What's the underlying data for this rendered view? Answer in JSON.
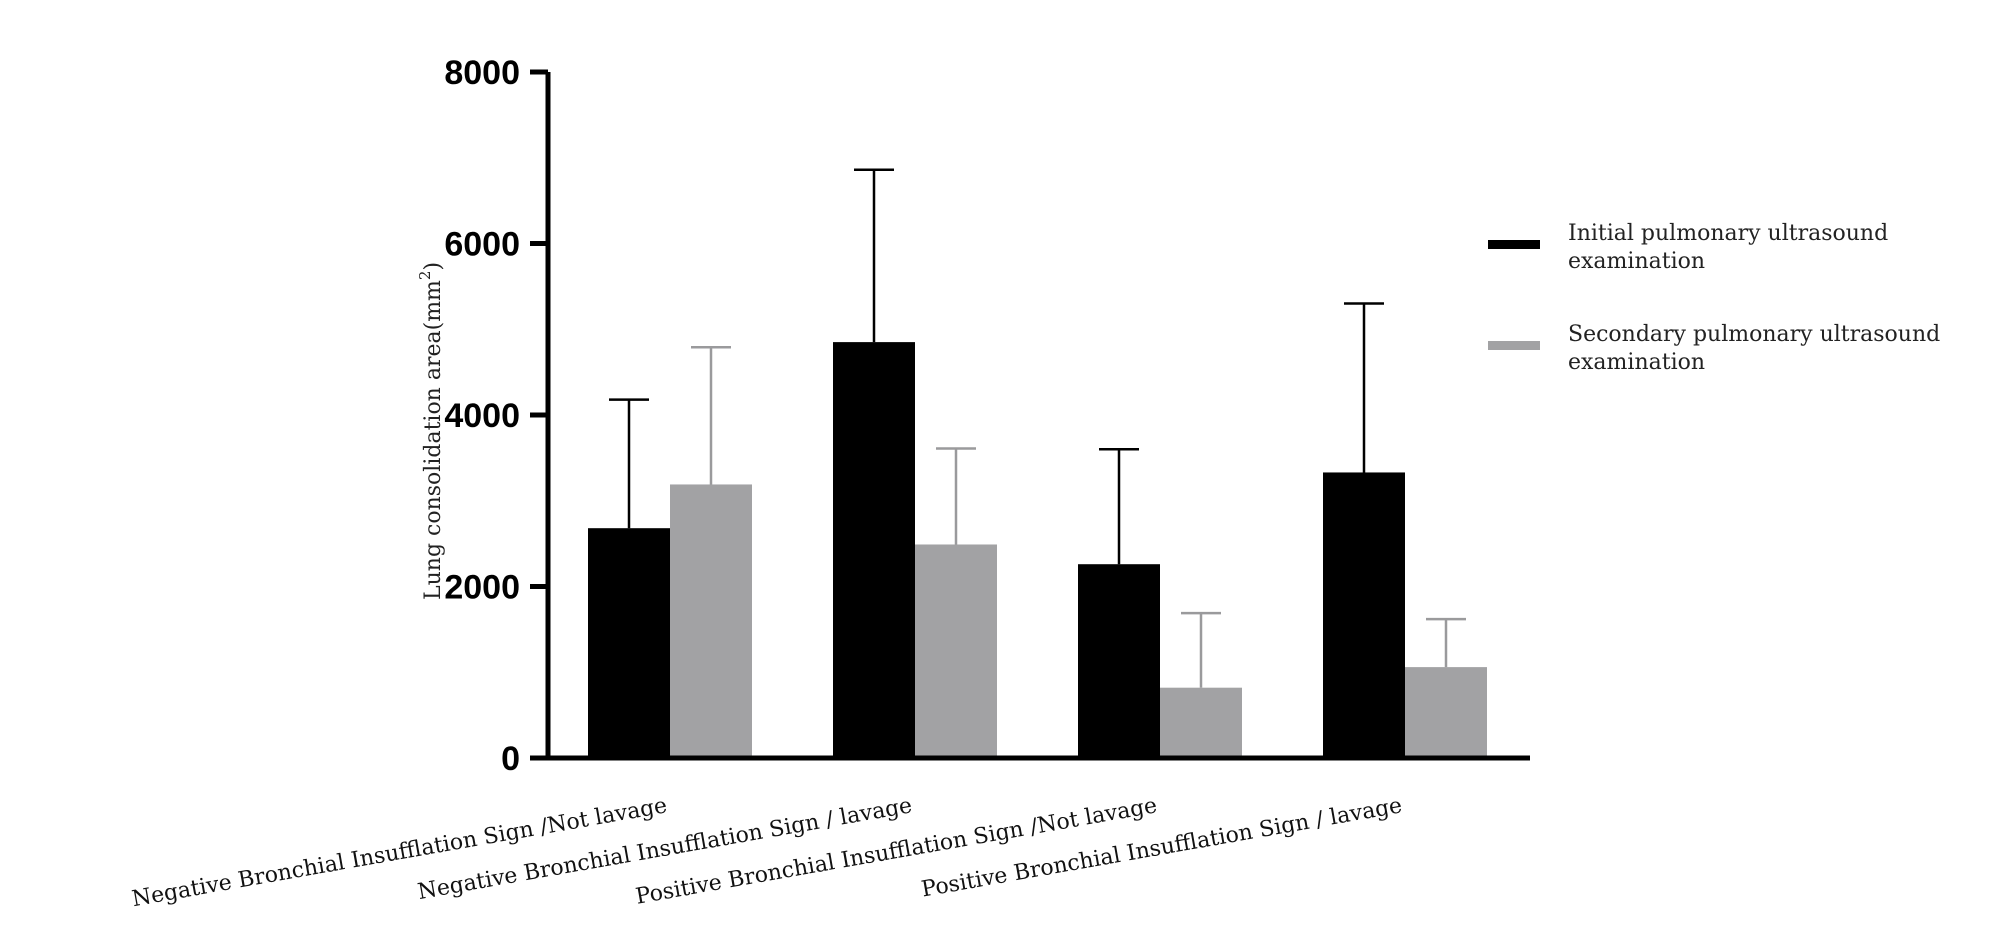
{
  "chart_data": {
    "type": "bar",
    "ylabel": "Lung consolidation area(mm",
    "ylabel_sup": "2",
    "ylabel_close": ")",
    "ylim": [
      0,
      8000
    ],
    "yticks": [
      0,
      2000,
      4000,
      6000,
      8000
    ],
    "ytick_labels": [
      "0",
      "2000",
      "4000",
      "6000",
      "8000"
    ],
    "grid": false,
    "legend_position": "right",
    "categories": [
      "Negative Bronchial Insufflation Sign /Not lavage",
      "Negative Bronchial Insufflation Sign / lavage",
      "Positive Bronchial Insufflation Sign  /Not lavage",
      "Positive Bronchial Insufflation Sign  / lavage"
    ],
    "series": [
      {
        "name_line1": "Initial pulmonary ultrasound",
        "name_line2": "examination",
        "color": "#000000",
        "error_color": "#000000",
        "values": [
          2680,
          4850,
          2260,
          3330
        ],
        "error_upper": [
          4180,
          6860,
          3600,
          5300
        ]
      },
      {
        "name_line1": "Secondary pulmonary ultrasound",
        "name_line2": "examination",
        "color": "#a2a2a4",
        "error_color": "#9a9a9c",
        "values": [
          3190,
          2490,
          820,
          1060
        ],
        "error_upper": [
          4790,
          3610,
          1690,
          1620
        ]
      }
    ]
  }
}
